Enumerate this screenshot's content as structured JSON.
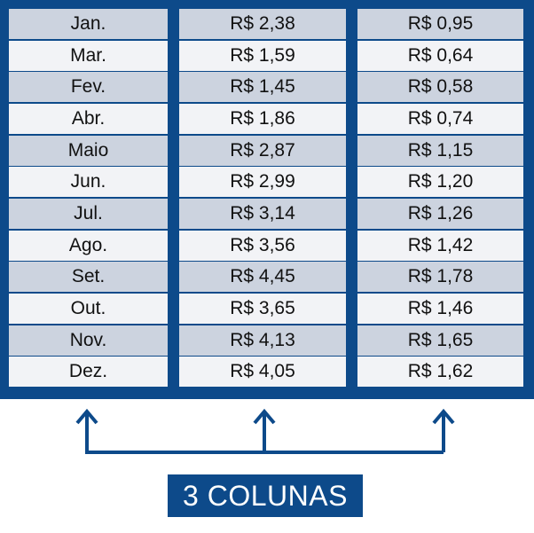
{
  "table": {
    "columns": [
      [
        "Jan.",
        "Mar.",
        "Fev.",
        "Abr.",
        "Maio",
        "Jun.",
        "Jul.",
        "Ago.",
        "Set.",
        "Out.",
        "Nov.",
        "Dez."
      ],
      [
        "R$ 2,38",
        "R$ 1,59",
        "R$ 1,45",
        "R$ 1,86",
        "R$ 2,87",
        "R$ 2,99",
        "R$ 3,14",
        "R$ 3,56",
        "R$ 4,45",
        "R$ 3,65",
        "R$ 4,13",
        "R$ 4,05"
      ],
      [
        "R$ 0,95",
        "R$ 0,64",
        "R$ 0,58",
        "R$ 0,74",
        "R$ 1,15",
        "R$ 1,20",
        "R$ 1,26",
        "R$ 1,42",
        "R$ 1,78",
        "R$ 1,46",
        "R$ 1,65",
        "R$ 1,62"
      ]
    ]
  },
  "label": "3 COLUNAS",
  "colors": {
    "frame": "#0d4a8a",
    "row_shade": "#ccd3df",
    "row_plain": "#f2f3f6"
  }
}
